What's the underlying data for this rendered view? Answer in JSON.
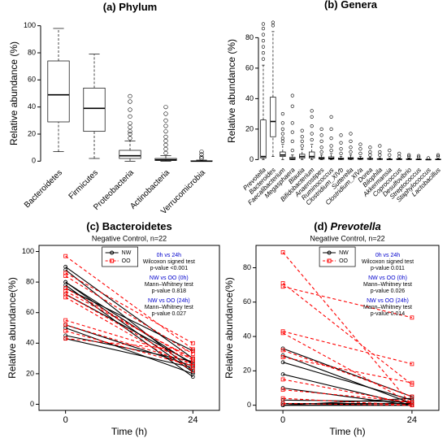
{
  "chart_data": [
    {
      "type": "box",
      "label": "(a)",
      "title": "Phylum",
      "y_label": "Relative abundance (%)",
      "categories": [
        "Bacteroidetes",
        "Firmicutes",
        "Proteobacteria",
        "Actinobacteria",
        "Verrucomicrobia"
      ],
      "boxes": [
        {
          "min": 7,
          "q1": 29,
          "median": 49,
          "q3": 74,
          "max": 98,
          "outliers": []
        },
        {
          "min": 2,
          "q1": 22,
          "median": 39,
          "q3": 54,
          "max": 79,
          "outliers": []
        },
        {
          "min": 0,
          "q1": 2,
          "median": 4,
          "q3": 8,
          "max": 15,
          "outliers": [
            17,
            20,
            22,
            25,
            28,
            33,
            38,
            44,
            48
          ]
        },
        {
          "min": 0,
          "q1": 0.5,
          "median": 1,
          "q3": 2,
          "max": 4,
          "outliers": [
            6,
            9,
            12,
            15,
            18,
            22,
            26,
            30,
            35,
            40
          ]
        },
        {
          "min": 0,
          "q1": 0,
          "median": 0,
          "q3": 0.3,
          "max": 0.8,
          "outliers": [
            2,
            3,
            5,
            7
          ]
        }
      ],
      "ylim": [
        -4,
        104
      ],
      "yticks": [
        0,
        20,
        40,
        60,
        80,
        100
      ],
      "frame": false,
      "italic_categories": false
    },
    {
      "type": "box",
      "label": "(b)",
      "title": "Genera",
      "y_label": "Relative abundance (%)",
      "categories": [
        "Prevotella",
        "Bacteroides",
        "Faecalibacterium",
        "Megasphaera",
        "Blautia",
        "Bifidobacterium",
        "Anaerostipes",
        "Ruminococcus",
        "Clostridium_XlVb",
        "Sutterella",
        "Clostridium_XlVa",
        "Dorea",
        "Bilophila",
        "Akkermansia",
        "Coprococcus",
        "Desulfovibrio",
        "Streptococcus",
        "Staphylococcus",
        "Lactobacillus"
      ],
      "boxes": [
        {
          "min": 0,
          "q1": 1,
          "median": 2,
          "q3": 26,
          "max": 62,
          "outliers": [
            66,
            70,
            74,
            78,
            82,
            86,
            89
          ]
        },
        {
          "min": 2,
          "q1": 15,
          "median": 25,
          "q3": 41,
          "max": 84,
          "outliers": [
            88,
            90
          ]
        },
        {
          "min": 0,
          "q1": 2,
          "median": 3,
          "q3": 5,
          "max": 10,
          "outliers": [
            12,
            14,
            17,
            20,
            24,
            30
          ]
        },
        {
          "min": 0,
          "q1": 0,
          "median": 0.5,
          "q3": 1.5,
          "max": 3,
          "outliers": [
            6,
            12,
            18,
            24,
            35,
            42
          ]
        },
        {
          "min": 0,
          "q1": 1,
          "median": 2,
          "q3": 3.5,
          "max": 7,
          "outliers": [
            9,
            12,
            15,
            19
          ]
        },
        {
          "min": 0,
          "q1": 1,
          "median": 2,
          "q3": 5,
          "max": 10,
          "outliers": [
            13,
            17,
            22,
            28,
            32
          ]
        },
        {
          "min": 0,
          "q1": 0.3,
          "median": 0.7,
          "q3": 1.5,
          "max": 3,
          "outliers": [
            5,
            8,
            12,
            16,
            20
          ]
        },
        {
          "min": 0,
          "q1": 0.3,
          "median": 0.8,
          "q3": 1.8,
          "max": 4,
          "outliers": [
            6,
            9,
            14,
            20,
            28
          ]
        },
        {
          "min": 0,
          "q1": 0.1,
          "median": 0.4,
          "q3": 1,
          "max": 2,
          "outliers": [
            4,
            7,
            11,
            16
          ]
        },
        {
          "min": 0,
          "q1": 0.2,
          "median": 0.6,
          "q3": 1.3,
          "max": 3,
          "outliers": [
            5,
            8,
            12,
            17
          ]
        },
        {
          "min": 0,
          "q1": 0.2,
          "median": 0.5,
          "q3": 1,
          "max": 2,
          "outliers": [
            4,
            7,
            10
          ]
        },
        {
          "min": 0,
          "q1": 0.2,
          "median": 0.4,
          "q3": 0.8,
          "max": 1.5,
          "outliers": [
            3,
            5,
            8
          ]
        },
        {
          "min": 0,
          "q1": 0.1,
          "median": 0.3,
          "q3": 0.6,
          "max": 1.2,
          "outliers": [
            3,
            5,
            9
          ]
        },
        {
          "min": 0,
          "q1": 0,
          "median": 0.1,
          "q3": 0.4,
          "max": 1,
          "outliers": [
            3,
            6
          ]
        },
        {
          "min": 0,
          "q1": 0.1,
          "median": 0.2,
          "q3": 0.5,
          "max": 1,
          "outliers": [
            2,
            4
          ]
        },
        {
          "min": 0,
          "q1": 0.1,
          "median": 0.2,
          "q3": 0.4,
          "max": 0.9,
          "outliers": [
            2,
            3
          ]
        },
        {
          "min": 0,
          "q1": 0,
          "median": 0.1,
          "q3": 0.2,
          "max": 0.5,
          "outliers": [
            1.5,
            2.5
          ]
        },
        {
          "min": 0,
          "q1": 0,
          "median": 0,
          "q3": 0.1,
          "max": 0.3,
          "outliers": [
            1
          ]
        },
        {
          "min": 0,
          "q1": 0,
          "median": 0.1,
          "q3": 0.2,
          "max": 0.5,
          "outliers": [
            2,
            3
          ]
        }
      ],
      "ylim": [
        -3,
        93
      ],
      "yticks": [
        0,
        20,
        40,
        60,
        80
      ],
      "frame": false,
      "italic_categories": true
    },
    {
      "type": "paired",
      "label": "(c)",
      "title": "Bacteroidetes",
      "italic_title": false,
      "subtitle": "Negative Control, n=22",
      "x_label": "Time (h)",
      "y_label": "Relative abundance(%)",
      "x": [
        0,
        24
      ],
      "xticks": [
        0,
        24
      ],
      "xlim": [
        -5,
        29
      ],
      "ylim": [
        -4,
        104
      ],
      "yticks": [
        0,
        20,
        40,
        60,
        80,
        100
      ],
      "frame": true,
      "series": [
        {
          "name": "NW",
          "color": "#000000",
          "dashed": false,
          "marker": "circle",
          "pairs": [
            [
              90,
              30
            ],
            [
              88,
              22
            ],
            [
              80,
              26
            ],
            [
              78,
              18
            ],
            [
              76,
              35
            ],
            [
              72,
              27
            ],
            [
              52,
              25
            ],
            [
              50,
              20
            ],
            [
              45,
              28
            ],
            [
              43,
              24
            ],
            [
              80,
              21
            ]
          ]
        },
        {
          "name": "OO",
          "color": "#ff0000",
          "dashed": true,
          "marker": "square",
          "pairs": [
            [
              97,
              36
            ],
            [
              86,
              40
            ],
            [
              84,
              33
            ],
            [
              76,
              29
            ],
            [
              74,
              30
            ],
            [
              72,
              25
            ],
            [
              70,
              22
            ],
            [
              55,
              30
            ],
            [
              52,
              27
            ],
            [
              48,
              25
            ],
            [
              43,
              35
            ]
          ]
        }
      ],
      "annotations": [
        {
          "text": "0h vs 24h",
          "color": "#0000cc"
        },
        {
          "text": "Wilcoxon signed test",
          "color": "#000000"
        },
        {
          "text": "p-value <0.001",
          "color": "#000000"
        },
        {
          "text": "NW vs OO (0h)",
          "color": "#0000cc"
        },
        {
          "text": "Mann–Whitney test",
          "color": "#000000"
        },
        {
          "text": "p-value 0.818",
          "color": "#000000"
        },
        {
          "text": "NW vs OO (24h)",
          "color": "#0000cc"
        },
        {
          "text": "Mann–Whitney test",
          "color": "#000000"
        },
        {
          "text": "p-value 0.027",
          "color": "#000000"
        }
      ]
    },
    {
      "type": "paired",
      "label": "(d)",
      "title": "Prevotella",
      "italic_title": true,
      "subtitle": "Negative Control, n=22",
      "x_label": "Time (h)",
      "y_label": "Relative abundance(%)",
      "x": [
        0,
        24
      ],
      "xticks": [
        0,
        24
      ],
      "xlim": [
        -5,
        29
      ],
      "ylim": [
        -3,
        93
      ],
      "yticks": [
        0,
        20,
        40,
        60,
        80
      ],
      "frame": true,
      "series": [
        {
          "name": "NW",
          "color": "#000000",
          "dashed": false,
          "marker": "circle",
          "pairs": [
            [
              33,
              5
            ],
            [
              29,
              1
            ],
            [
              25,
              3
            ],
            [
              18,
              0
            ],
            [
              10,
              0
            ],
            [
              3,
              2
            ],
            [
              1,
              1
            ],
            [
              0,
              0
            ],
            [
              0,
              4
            ],
            [
              1,
              0
            ],
            [
              0,
              0
            ]
          ]
        },
        {
          "name": "OO",
          "color": "#ff0000",
          "dashed": true,
          "marker": "square",
          "pairs": [
            [
              89,
              0
            ],
            [
              71,
              12
            ],
            [
              69,
              51
            ],
            [
              43,
              24
            ],
            [
              42,
              1
            ],
            [
              32,
              5
            ],
            [
              28,
              13
            ],
            [
              15,
              1
            ],
            [
              9,
              2
            ],
            [
              4,
              0
            ],
            [
              1,
              0
            ]
          ]
        }
      ],
      "annotations": [
        {
          "text": "0h vs 24h",
          "color": "#0000cc"
        },
        {
          "text": "Wilcoxon signed test",
          "color": "#000000"
        },
        {
          "text": "p-value 0.011",
          "color": "#000000"
        },
        {
          "text": "NW vs OO (0h)",
          "color": "#0000cc"
        },
        {
          "text": "Mann–Whitney test",
          "color": "#000000"
        },
        {
          "text": "p-value 0.026",
          "color": "#000000"
        },
        {
          "text": "NW vs OO (24h)",
          "color": "#0000cc"
        },
        {
          "text": "Mann–Whitney test",
          "color": "#000000"
        },
        {
          "text": "p-value 0.014",
          "color": "#000000"
        }
      ]
    }
  ]
}
